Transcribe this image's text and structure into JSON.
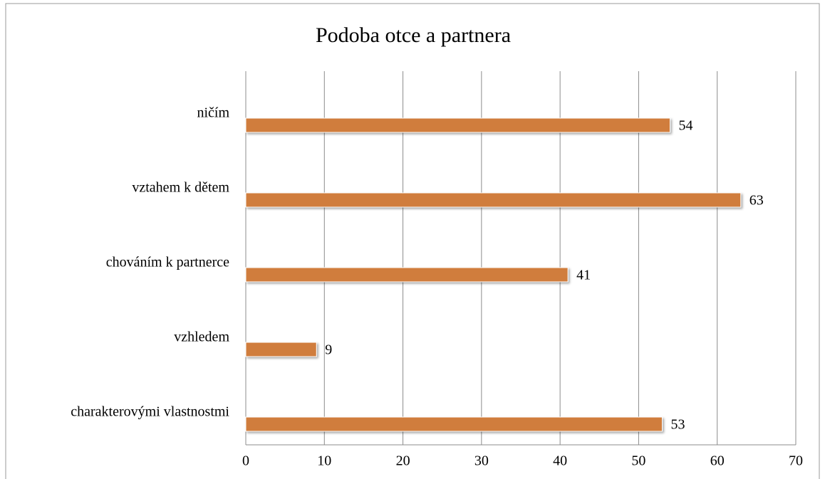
{
  "chart_data": {
    "type": "bar",
    "orientation": "horizontal",
    "title": "Podoba otce a partnera",
    "categories": [
      "ničím",
      "vztahem k dětem",
      "chováním k partnerce",
      "vzhledem",
      "charakterovými vlastnostmi"
    ],
    "values": [
      54,
      63,
      41,
      9,
      53
    ],
    "color": "#d07d3c",
    "xlim": [
      0,
      70
    ],
    "xticks": [
      0,
      10,
      20,
      30,
      40,
      50,
      60,
      70
    ],
    "grid": true
  }
}
